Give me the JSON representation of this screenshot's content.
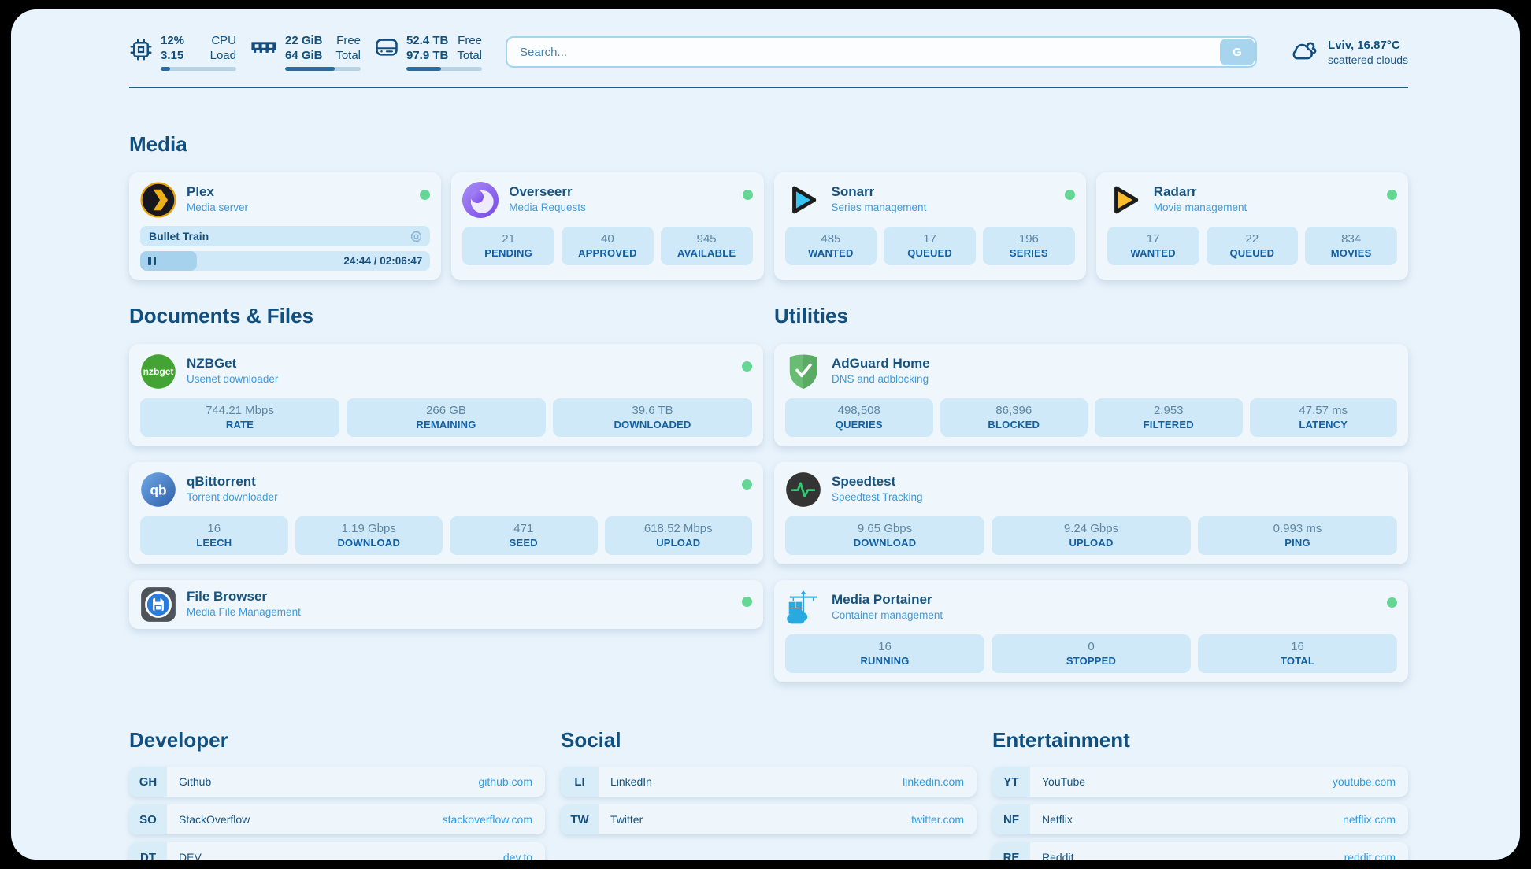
{
  "topbar": {
    "cpu": {
      "values": [
        "12%",
        "3.15"
      ],
      "labels": [
        "CPU",
        "Load"
      ],
      "progress": 12.5
    },
    "ram": {
      "values": [
        "22 GiB",
        "64 GiB"
      ],
      "labels": [
        "Free",
        "Total"
      ],
      "progress": 66
    },
    "disk": {
      "values": [
        "52.4 TB",
        "97.9 TB"
      ],
      "labels": [
        "Free",
        "Total"
      ],
      "progress": 46
    },
    "search": {
      "placeholder": "Search...",
      "button_label": "G"
    },
    "weather": {
      "location": "Lviv, 16.87°C",
      "condition": "scattered clouds"
    }
  },
  "media": {
    "title": "Media",
    "plex": {
      "name": "Plex",
      "description": "Media server",
      "now_playing": "Bullet Train",
      "time": "24:44 / 02:06:47",
      "progress": 19.5
    },
    "overseerr": {
      "name": "Overseerr",
      "description": "Media Requests",
      "stats": [
        {
          "value": "21",
          "label": "PENDING"
        },
        {
          "value": "40",
          "label": "APPROVED"
        },
        {
          "value": "945",
          "label": "AVAILABLE"
        }
      ]
    },
    "sonarr": {
      "name": "Sonarr",
      "description": "Series management",
      "stats": [
        {
          "value": "485",
          "label": "WANTED"
        },
        {
          "value": "17",
          "label": "QUEUED"
        },
        {
          "value": "196",
          "label": "SERIES"
        }
      ]
    },
    "radarr": {
      "name": "Radarr",
      "description": "Movie management",
      "stats": [
        {
          "value": "17",
          "label": "WANTED"
        },
        {
          "value": "22",
          "label": "QUEUED"
        },
        {
          "value": "834",
          "label": "MOVIES"
        }
      ]
    }
  },
  "documents": {
    "title": "Documents & Files",
    "nzbget": {
      "name": "NZBGet",
      "description": "Usenet downloader",
      "stats": [
        {
          "value": "744.21 Mbps",
          "label": "RATE"
        },
        {
          "value": "266 GB",
          "label": "REMAINING"
        },
        {
          "value": "39.6 TB",
          "label": "DOWNLOADED"
        }
      ]
    },
    "qbittorrent": {
      "name": "qBittorrent",
      "description": "Torrent downloader",
      "stats": [
        {
          "value": "16",
          "label": "LEECH"
        },
        {
          "value": "1.19 Gbps",
          "label": "DOWNLOAD"
        },
        {
          "value": "471",
          "label": "SEED"
        },
        {
          "value": "618.52 Mbps",
          "label": "UPLOAD"
        }
      ]
    },
    "filebrowser": {
      "name": "File Browser",
      "description": "Media File Management"
    }
  },
  "utilities": {
    "title": "Utilities",
    "adguard": {
      "name": "AdGuard Home",
      "description": "DNS and adblocking",
      "stats": [
        {
          "value": "498,508",
          "label": "QUERIES"
        },
        {
          "value": "86,396",
          "label": "BLOCKED"
        },
        {
          "value": "2,953",
          "label": "FILTERED"
        },
        {
          "value": "47.57 ms",
          "label": "LATENCY"
        }
      ]
    },
    "speedtest": {
      "name": "Speedtest",
      "description": "Speedtest Tracking",
      "stats": [
        {
          "value": "9.65 Gbps",
          "label": "DOWNLOAD"
        },
        {
          "value": "9.24 Gbps",
          "label": "UPLOAD"
        },
        {
          "value": "0.993 ms",
          "label": "PING"
        }
      ]
    },
    "portainer": {
      "name": "Media Portainer",
      "description": "Container management",
      "stats": [
        {
          "value": "16",
          "label": "RUNNING"
        },
        {
          "value": "0",
          "label": "STOPPED"
        },
        {
          "value": "16",
          "label": "TOTAL"
        }
      ]
    }
  },
  "bookmarks": {
    "developer": {
      "title": "Developer",
      "items": [
        {
          "abbr": "GH",
          "name": "Github",
          "url": "github.com"
        },
        {
          "abbr": "SO",
          "name": "StackOverflow",
          "url": "stackoverflow.com"
        },
        {
          "abbr": "DT",
          "name": "DEV",
          "url": "dev.to"
        }
      ]
    },
    "social": {
      "title": "Social",
      "items": [
        {
          "abbr": "LI",
          "name": "LinkedIn",
          "url": "linkedin.com"
        },
        {
          "abbr": "TW",
          "name": "Twitter",
          "url": "twitter.com"
        }
      ]
    },
    "entertainment": {
      "title": "Entertainment",
      "items": [
        {
          "abbr": "YT",
          "name": "YouTube",
          "url": "youtube.com"
        },
        {
          "abbr": "NF",
          "name": "Netflix",
          "url": "netflix.com"
        },
        {
          "abbr": "RE",
          "name": "Reddit",
          "url": "reddit.com"
        }
      ]
    }
  },
  "colors": {
    "accent": "#114f7e",
    "link": "#2f9ce4",
    "status_online": "#66d695",
    "pill_bg": "#cfe9f8",
    "page_bg": "#e9f3fb"
  }
}
